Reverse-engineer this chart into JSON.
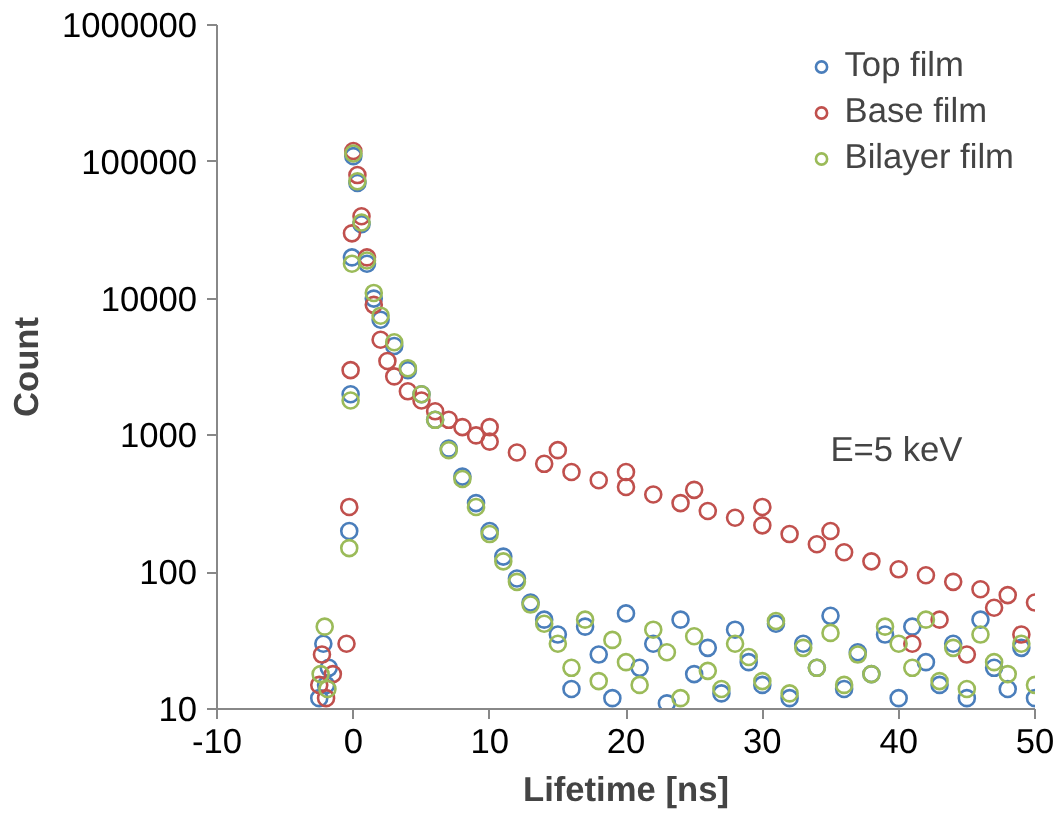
{
  "chart_data": {
    "type": "scatter",
    "xlabel": "Lifetime [ns]",
    "ylabel": "Count",
    "log": "y",
    "xlim": [
      -10,
      50
    ],
    "xticks": [
      -10,
      0,
      10,
      20,
      30,
      40,
      50
    ],
    "ylim": [
      10,
      1000000
    ],
    "yticks": [
      10,
      100,
      1000,
      10000,
      100000,
      1000000
    ],
    "grid": false,
    "legend": "top right",
    "marker": "circle",
    "annotations": [
      "E=5 keV"
    ],
    "series": [
      {
        "name": "Top film",
        "color": "#4a7ebb",
        "x": [
          -2.5,
          -2.2,
          -2,
          -1.8,
          -0.3,
          -0.2,
          -0.1,
          0,
          0.3,
          0.6,
          1,
          1.5,
          2,
          3,
          4,
          5,
          6,
          7,
          8,
          9,
          10,
          11,
          12,
          13,
          14,
          15,
          16,
          17,
          18,
          19,
          20,
          21,
          22,
          23,
          24,
          25,
          26,
          27,
          28,
          29,
          30,
          31,
          32,
          33,
          34,
          35,
          36,
          37,
          38,
          39,
          40,
          41,
          42,
          43,
          44,
          45,
          46,
          47,
          48,
          49,
          50
        ],
        "values": [
          12,
          30,
          15,
          20,
          200,
          2000,
          20000,
          110000,
          70000,
          35000,
          18000,
          10000,
          7000,
          4500,
          3000,
          2000,
          1300,
          800,
          500,
          320,
          200,
          130,
          90,
          60,
          45,
          35,
          14,
          40,
          25,
          12,
          50,
          20,
          30,
          11,
          45,
          18,
          28,
          13,
          38,
          22,
          15,
          42,
          12,
          30,
          20,
          48,
          14,
          26,
          18,
          35,
          12,
          40,
          22,
          15,
          30,
          12,
          45,
          20,
          14,
          28,
          12
        ]
      },
      {
        "name": "Base film",
        "color": "#c0504d",
        "x": [
          -2.5,
          -2.3,
          -2,
          -1.5,
          -0.5,
          -0.3,
          -0.2,
          -0.1,
          0,
          0.3,
          0.6,
          1,
          1.5,
          2,
          2.5,
          3,
          4,
          5,
          6,
          7,
          8,
          9,
          10,
          12,
          14,
          16,
          18,
          20,
          22,
          24,
          26,
          28,
          30,
          32,
          34,
          36,
          38,
          40,
          42,
          44,
          46,
          48,
          50,
          41,
          43,
          45,
          47,
          49,
          10,
          15,
          20,
          25,
          30,
          35
        ],
        "values": [
          15,
          25,
          12,
          18,
          30,
          300,
          3000,
          30000,
          120000,
          80000,
          40000,
          20000,
          9000,
          5000,
          3500,
          2700,
          2100,
          1800,
          1500,
          1300,
          1150,
          1000,
          900,
          750,
          620,
          540,
          470,
          420,
          370,
          320,
          280,
          250,
          220,
          190,
          160,
          140,
          120,
          105,
          95,
          85,
          75,
          68,
          60,
          30,
          45,
          25,
          55,
          35,
          1150,
          780,
          540,
          400,
          300,
          200
        ]
      },
      {
        "name": "Bilayer film",
        "color": "#9bbb59",
        "x": [
          -2.4,
          -2.1,
          -1.9,
          -0.3,
          -0.2,
          -0.1,
          0,
          0.3,
          0.6,
          1,
          1.5,
          2,
          3,
          4,
          5,
          6,
          7,
          8,
          9,
          10,
          11,
          12,
          13,
          14,
          15,
          16,
          17,
          18,
          19,
          20,
          21,
          22,
          23,
          24,
          25,
          26,
          27,
          28,
          29,
          30,
          31,
          32,
          33,
          34,
          35,
          36,
          37,
          38,
          39,
          40,
          41,
          42,
          43,
          44,
          45,
          46,
          47,
          48,
          49,
          50
        ],
        "values": [
          18,
          40,
          14,
          150,
          1800,
          18000,
          115000,
          72000,
          36000,
          19000,
          11000,
          7500,
          4800,
          3100,
          2000,
          1300,
          780,
          480,
          300,
          190,
          120,
          85,
          58,
          42,
          30,
          20,
          45,
          16,
          32,
          22,
          15,
          38,
          26,
          12,
          34,
          19,
          14,
          30,
          24,
          16,
          44,
          13,
          28,
          20,
          36,
          15,
          25,
          18,
          40,
          30,
          20,
          45,
          16,
          28,
          14,
          35,
          22,
          18,
          30,
          15
        ]
      }
    ]
  }
}
